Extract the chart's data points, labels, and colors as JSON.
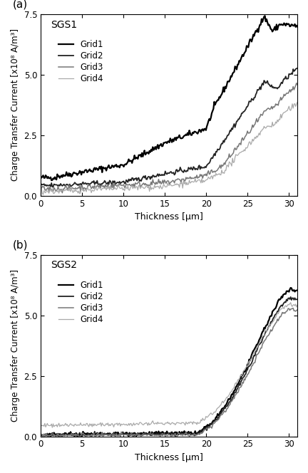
{
  "title_a": "SGS1",
  "title_b": "SGS2",
  "xlabel": "Thickness [μm]",
  "ylabel": "Charge Transfer Current [x10⁸ A/m³]",
  "xlim": [
    0,
    31
  ],
  "ylim": [
    0,
    7.5
  ],
  "xticks": [
    0,
    5,
    10,
    15,
    20,
    25,
    30
  ],
  "yticks": [
    0.0,
    2.5,
    5.0,
    7.5
  ],
  "legend_labels": [
    "Grid1",
    "Grid2",
    "Grid3",
    "Grid4"
  ],
  "colors": [
    "#000000",
    "#222222",
    "#777777",
    "#aaaaaa"
  ],
  "linewidths": [
    1.6,
    1.3,
    1.1,
    0.9
  ],
  "panel_label_a": "(a)",
  "panel_label_b": "(b)"
}
